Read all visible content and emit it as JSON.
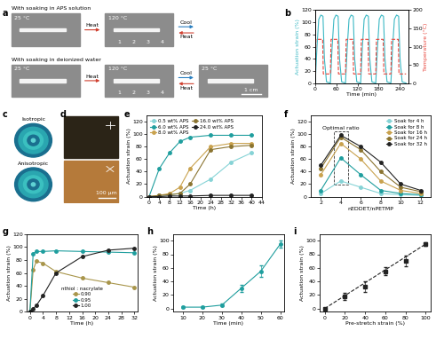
{
  "panel_a": {
    "label": "a",
    "rows": [
      {
        "title": "With soaking in APS solution",
        "photos": [
          {
            "temperature": "25 °C"
          },
          {
            "temperature": "120 °C",
            "ruler": [
              "1",
              "2",
              "3",
              "4"
            ]
          }
        ],
        "arrows": [
          [
            "Heat"
          ],
          [
            "Cool",
            "Heat"
          ]
        ]
      },
      {
        "title": "With soaking in deionized water",
        "photos": [
          {
            "temperature": "25 °C"
          },
          {
            "temperature": "120 °C",
            "ruler": [
              "1",
              "2",
              "3",
              "4"
            ]
          },
          {
            "temperature": "25 °C",
            "scale_bar": "1 cm"
          }
        ],
        "arrows": [
          [
            "Heat"
          ],
          [
            "Cool",
            "Heat"
          ]
        ]
      }
    ]
  },
  "panel_c": {
    "label": "c",
    "images": [
      "Isotropic",
      "Anisotropic"
    ]
  },
  "panel_d": {
    "label": "d",
    "scale_bar": "100 μm"
  },
  "chart_data": [
    {
      "label": "b",
      "type": "line",
      "x_label": "Time (min)",
      "y_label": "Actuation strain (%)",
      "y2_label": "Temperature (°C)",
      "xlim": [
        0,
        265
      ],
      "xticks": [
        0,
        60,
        120,
        180,
        240
      ],
      "ylim": [
        0,
        120
      ],
      "yticks": [
        0,
        20,
        40,
        60,
        80,
        100,
        120
      ],
      "y2lim": [
        0,
        200
      ],
      "y2ticks": [
        0,
        50,
        100,
        150,
        200
      ],
      "series": [
        {
          "color": "#3bb8c4",
          "line_style": "solid",
          "marker": "none",
          "x": [
            0,
            5,
            10,
            16,
            22,
            26,
            32,
            43,
            48,
            53,
            59,
            65,
            69,
            75,
            86,
            91,
            96,
            102,
            108,
            112,
            118,
            129,
            134,
            139,
            145,
            151,
            155,
            161,
            172,
            177,
            182,
            188,
            194,
            198,
            204,
            215,
            220,
            225,
            231,
            237,
            241,
            247,
            258
          ],
          "values": [
            0,
            60,
            105,
            112,
            110,
            40,
            2,
            0,
            60,
            105,
            112,
            110,
            40,
            2,
            0,
            60,
            105,
            112,
            110,
            40,
            2,
            0,
            60,
            105,
            112,
            110,
            40,
            2,
            0,
            60,
            105,
            112,
            110,
            40,
            2,
            0,
            60,
            105,
            112,
            110,
            40,
            2,
            0
          ]
        },
        {
          "color": "#e8453c",
          "line_style": "dashed",
          "marker": "none",
          "axis": "y2",
          "x": [
            0,
            2,
            21,
            23,
            43,
            45,
            64,
            66,
            86,
            88,
            107,
            109,
            129,
            131,
            150,
            152,
            172,
            174,
            193,
            195,
            215,
            217,
            236,
            238,
            258
          ],
          "values": [
            25,
            120,
            120,
            25,
            25,
            120,
            120,
            25,
            25,
            120,
            120,
            25,
            25,
            120,
            120,
            25,
            25,
            120,
            120,
            25,
            25,
            120,
            120,
            25,
            25
          ]
        }
      ]
    },
    {
      "label": "e",
      "type": "line",
      "x_label": "Time (h)",
      "y_label": "Actuation strain (%)",
      "x": [
        0,
        4,
        8,
        12,
        16,
        24,
        32,
        40
      ],
      "xlim": [
        -1,
        44
      ],
      "xticks": [
        0,
        4,
        8,
        12,
        16,
        20,
        24,
        28,
        32,
        36,
        40,
        44
      ],
      "ylim": [
        0,
        130
      ],
      "yticks": [
        0,
        20,
        40,
        60,
        80,
        100,
        120
      ],
      "legend": "upper left",
      "series": [
        {
          "name": "0.5 wt% APS",
          "color": "#86d3d6",
          "marker": "circle",
          "line_style": "solid",
          "values": [
            0,
            2,
            3,
            5,
            10,
            28,
            55,
            70
          ]
        },
        {
          "name": "6.0 wt% APS",
          "color": "#1f9e9e",
          "marker": "circle",
          "line_style": "solid",
          "values": [
            0,
            45,
            70,
            88,
            95,
            98,
            98,
            98
          ]
        },
        {
          "name": "8.0 wt% APS",
          "color": "#c9a24e",
          "marker": "circle",
          "line_style": "solid",
          "values": [
            0,
            2,
            5,
            15,
            45,
            80,
            85,
            85
          ]
        },
        {
          "name": "16.0 wt% APS",
          "color": "#8b7430",
          "marker": "circle",
          "line_style": "solid",
          "values": [
            0,
            2,
            3,
            5,
            20,
            75,
            80,
            82
          ]
        },
        {
          "name": "24.0 wt% APS",
          "color": "#222222",
          "marker": "circle",
          "line_style": "solid",
          "values": [
            0,
            0,
            1,
            1,
            1,
            2,
            2,
            2
          ]
        }
      ]
    },
    {
      "label": "f",
      "type": "line",
      "x_label": "nEDDET/nPETMP",
      "y_label": "Actuation strain (%)",
      "x": [
        2,
        4,
        6,
        8,
        10,
        12
      ],
      "xlim": [
        1,
        13
      ],
      "xticks": [
        2,
        4,
        6,
        8,
        10,
        12
      ],
      "ylim": [
        0,
        130
      ],
      "yticks": [
        0,
        20,
        40,
        60,
        80,
        100,
        120
      ],
      "legend": "upper right",
      "annotation": {
        "text": "Optimal ratio",
        "x": 4
      },
      "series": [
        {
          "name": "Soak for 4 h",
          "color": "#86d3d6",
          "marker": "circle",
          "line_style": "solid",
          "values": [
            5,
            25,
            15,
            5,
            3,
            2
          ]
        },
        {
          "name": "Soak for 8 h",
          "color": "#1f9e9e",
          "marker": "circle",
          "line_style": "solid",
          "values": [
            10,
            62,
            35,
            10,
            5,
            3
          ]
        },
        {
          "name": "Soak for 16 h",
          "color": "#c9a24e",
          "marker": "circle",
          "line_style": "solid",
          "values": [
            35,
            85,
            60,
            25,
            10,
            5
          ]
        },
        {
          "name": "Soak for 24 h",
          "color": "#8b7430",
          "marker": "circle",
          "line_style": "solid",
          "values": [
            45,
            95,
            75,
            40,
            15,
            8
          ]
        },
        {
          "name": "Soak for 32 h",
          "color": "#222222",
          "marker": "circle",
          "line_style": "solid",
          "values": [
            50,
            98,
            80,
            55,
            20,
            10
          ]
        }
      ]
    },
    {
      "label": "g",
      "type": "line",
      "x_label": "Time (h)",
      "y_label": "Actuation strain (%)",
      "x": [
        0,
        1,
        2,
        4,
        8,
        16,
        24,
        32
      ],
      "xlim": [
        -1,
        33
      ],
      "xticks": [
        0,
        4,
        8,
        12,
        16,
        20,
        24,
        28,
        32
      ],
      "ylim": [
        0,
        120
      ],
      "yticks": [
        0,
        20,
        40,
        60,
        80,
        100,
        120
      ],
      "legend": "lower center",
      "legend_title": "nthiol : nacrylate",
      "series": [
        {
          "name": "0.90",
          "color": "#a8954a",
          "marker": "circle",
          "line_style": "solid",
          "values": [
            0,
            65,
            78,
            75,
            62,
            52,
            45,
            38
          ]
        },
        {
          "name": "0.95",
          "color": "#1f9e9e",
          "marker": "circle",
          "line_style": "solid",
          "values": [
            0,
            90,
            93,
            93,
            94,
            93,
            92,
            91
          ]
        },
        {
          "name": "1.00",
          "color": "#222222",
          "marker": "circle",
          "line_style": "solid",
          "values": [
            0,
            5,
            10,
            25,
            60,
            85,
            95,
            98
          ]
        }
      ]
    },
    {
      "label": "h",
      "type": "line",
      "x_label": "Time (min)",
      "y_label": "Actuation strain (%)",
      "x": [
        10,
        20,
        30,
        40,
        50,
        60
      ],
      "xlim": [
        5,
        62
      ],
      "xticks": [
        10,
        20,
        30,
        40,
        50,
        60
      ],
      "ylim": [
        -5,
        110
      ],
      "yticks": [
        0,
        20,
        40,
        60,
        80,
        100
      ],
      "series": [
        {
          "color": "#1f9e9e",
          "marker": "circle",
          "line_style": "solid",
          "values": [
            2,
            2,
            5,
            30,
            55,
            95
          ],
          "errors": [
            1,
            1,
            2,
            5,
            8,
            5
          ]
        }
      ]
    },
    {
      "label": "i",
      "type": "scatter",
      "x_label": "Pre-stretch strain (%)",
      "y_label": "Actuation strain (%)",
      "xlim": [
        -5,
        105
      ],
      "xticks": [
        0,
        20,
        40,
        60,
        80,
        100
      ],
      "ylim": [
        -5,
        110
      ],
      "yticks": [
        0,
        20,
        40,
        60,
        80,
        100
      ],
      "series": [
        {
          "color": "#222222",
          "marker": "square",
          "line_style": "none",
          "x": [
            0,
            20,
            40,
            60,
            80,
            100
          ],
          "values": [
            0,
            18,
            32,
            55,
            70,
            95
          ],
          "errors": [
            0,
            5,
            8,
            6,
            8,
            3
          ]
        },
        {
          "color": "#222222",
          "marker": "none",
          "line_style": "dashed",
          "x": [
            0,
            100
          ],
          "values": [
            0,
            95
          ]
        }
      ]
    }
  ]
}
